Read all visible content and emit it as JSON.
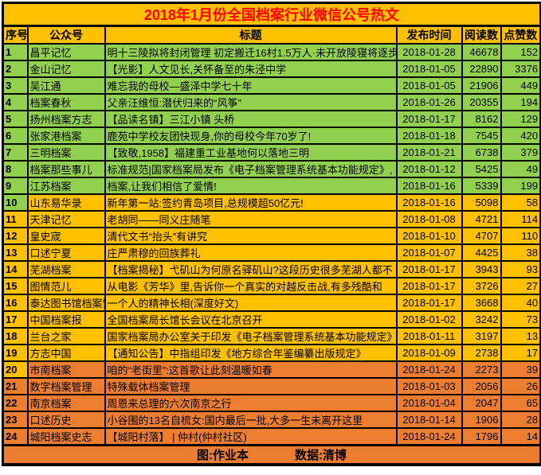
{
  "header": {
    "title": "2018年1月份全国档案行业微信公号热文"
  },
  "chart_data": {
    "type": "table",
    "title": "2018年1月份全国档案行业微信公号热文",
    "columns": [
      "序号",
      "公众号",
      "标题",
      "发布时间",
      "阅读数",
      "点赞数"
    ],
    "rows": [
      {
        "no": "1",
        "account": "昌平记忆",
        "title": "明十三陵拟将封闭管理 初定搬迁16村1.5万人·未开放陵寝将逐步",
        "date": "2018-01-28",
        "reads": "46678",
        "likes": "152",
        "band": "green",
        "no_band": "green"
      },
      {
        "no": "2",
        "account": "金山记忆",
        "title": "【光影】人文见长,关怀备至的朱泾中学",
        "date": "2018-01-05",
        "reads": "22890",
        "likes": "3376",
        "band": "green",
        "no_band": "green"
      },
      {
        "no": "3",
        "account": "吴江通",
        "title": "难忘我的母校—盛泽中学七十年",
        "date": "2018-01-05",
        "reads": "21906",
        "likes": "449",
        "band": "green",
        "no_band": "green"
      },
      {
        "no": "4",
        "account": "档案春秋",
        "title": "父亲汪维恒:潜伏归来的“风筝”",
        "date": "2018-01-26",
        "reads": "20355",
        "likes": "194",
        "band": "green",
        "no_band": "green"
      },
      {
        "no": "5",
        "account": "扬州档案方志",
        "title": "【品读名镇】三江小镇 头桥",
        "date": "2018-01-17",
        "reads": "8162",
        "likes": "129",
        "band": "green",
        "no_band": "green"
      },
      {
        "no": "6",
        "account": "张家港档案",
        "title": "鹿苑中学校友团快现身,你的母校今年70岁了!",
        "date": "2018-01-18",
        "reads": "7545",
        "likes": "420",
        "band": "green",
        "no_band": "green"
      },
      {
        "no": "7",
        "account": "三明档案",
        "title": "【致敬,1958】福建重工业基地何以落地三明",
        "date": "2018-01-21",
        "reads": "6738",
        "likes": "379",
        "band": "green",
        "no_band": "green"
      },
      {
        "no": "8",
        "account": "档案那些事儿",
        "title": "标准规范|国家档案局发布《电子档案管理系统基本功能规定》,",
        "date": "2018-01-12",
        "reads": "5425",
        "likes": "49",
        "band": "green",
        "no_band": "green"
      },
      {
        "no": "9",
        "account": "江苏档案",
        "title": "档案,让我们相信了爱情!",
        "date": "2018-01-16",
        "reads": "5339",
        "likes": "199",
        "band": "green",
        "no_band": "green"
      },
      {
        "no": "10",
        "account": "山东易华录",
        "title": "新年第一站:签约青岛项目,总规模超50亿元!",
        "date": "2018-01-16",
        "reads": "5098",
        "likes": "58",
        "band": "amber",
        "no_band": "green"
      },
      {
        "no": "11",
        "account": "天津记忆",
        "title": "老胡同——同义庄随笔",
        "date": "2018-01-08",
        "reads": "4721",
        "likes": "114",
        "band": "amber",
        "no_band": "amber"
      },
      {
        "no": "12",
        "account": "皇史宬",
        "title": "清代文书“抬头”有讲究",
        "date": "2018-01-10",
        "reads": "4707",
        "likes": "110",
        "band": "amber",
        "no_band": "amber"
      },
      {
        "no": "13",
        "account": "口述宁夏",
        "title": "庄严肃穆的回族葬礼",
        "date": "2018-01-07",
        "reads": "4425",
        "likes": "38",
        "band": "amber",
        "no_band": "amber"
      },
      {
        "no": "14",
        "account": "芜湖档案",
        "title": "【档案揭秘】弋矶山为何原名驿矶山?这段历史很多芜湖人都不",
        "date": "2018-01-17",
        "reads": "3943",
        "likes": "93",
        "band": "amber",
        "no_band": "amber"
      },
      {
        "no": "15",
        "account": "图情范儿",
        "title": "从电影《芳华》里,告诉你一个真实的对越反击战,有多残酷和",
        "date": "2018-01-17",
        "reads": "3726",
        "likes": "27",
        "band": "amber",
        "no_band": "amber"
      },
      {
        "no": "16",
        "account": "泰达图书馆档案馆",
        "title": "一个人的精神长相(深度好文)",
        "date": "2018-01-17",
        "reads": "3668",
        "likes": "40",
        "band": "amber",
        "no_band": "amber"
      },
      {
        "no": "17",
        "account": "中国档案报",
        "title": "全国档案局长馆长会议在北京召开",
        "date": "2018-01-02",
        "reads": "3242",
        "likes": "73",
        "band": "amber",
        "no_band": "amber"
      },
      {
        "no": "18",
        "account": "兰台之家",
        "title": "国家档案局办公室关于印发《电子档案管理系统基本功能规定》",
        "date": "2018-01-11",
        "reads": "3197",
        "likes": "13",
        "band": "amber",
        "no_band": "amber"
      },
      {
        "no": "19",
        "account": "方志中国",
        "title": "【通知公告】中指组印发《地方综合年鉴编纂出版规定》",
        "date": "2018-01-09",
        "reads": "2738",
        "likes": "17",
        "band": "amber",
        "no_band": "amber"
      },
      {
        "no": "20",
        "account": "市南档案",
        "title": "咱的“老街里”:这首歌让此刻温暖如春",
        "date": "2018-01-24",
        "reads": "2273",
        "likes": "39",
        "band": "orange",
        "no_band": "amber"
      },
      {
        "no": "21",
        "account": "数字档案管理",
        "title": "特殊载体档案管理",
        "date": "2018-01-03",
        "reads": "2056",
        "likes": "26",
        "band": "orange",
        "no_band": "orange"
      },
      {
        "no": "22",
        "account": "南京档案",
        "title": "周恩来总理的六次南京之行",
        "date": "2018-01-04",
        "reads": "2047",
        "likes": "65",
        "band": "orange",
        "no_band": "orange"
      },
      {
        "no": "23",
        "account": "口述历史",
        "title": "小谷围的13名自梳女:国内最后一批,大多一生未离开这里",
        "date": "2018-01-14",
        "reads": "1906",
        "likes": "28",
        "band": "orange",
        "no_band": "orange"
      },
      {
        "no": "24",
        "account": "城阳档案史志",
        "title": "【城阳村落】 | 仲村(仲村社区)",
        "date": "2018-01-24",
        "reads": "1796",
        "likes": "14",
        "band": "orange",
        "no_band": "orange"
      }
    ]
  },
  "footer": {
    "credit_image": "图:作业本",
    "credit_data": "数据:清博"
  },
  "colors": {
    "band_green": "#92D050",
    "band_amber": "#FFC000",
    "band_orange": "#ED7D31",
    "title_text": "#FF0000",
    "border": "#000000"
  }
}
